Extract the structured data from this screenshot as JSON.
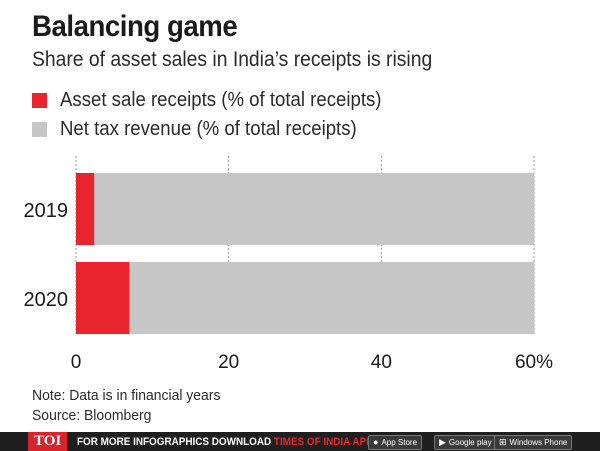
{
  "header": {
    "title": "Balancing game",
    "subtitle": "Share of asset sales in India’s receipts is rising"
  },
  "legend": [
    {
      "label": "Asset sale receipts (% of total receipts)",
      "color": "#e8242c"
    },
    {
      "label": "Net tax revenue (% of total receipts)",
      "color": "#c6c6c6"
    }
  ],
  "chart_data": {
    "type": "bar",
    "orientation": "horizontal",
    "stacked": true,
    "categories": [
      "2019",
      "2020"
    ],
    "series": [
      {
        "name": "Asset sale receipts (% of total receipts)",
        "values": [
          2.4,
          7.0
        ],
        "color": "#e8242c"
      },
      {
        "name": "Net tax revenue (% of total receipts)",
        "values": [
          57.6,
          53.0
        ],
        "color": "#c6c6c6"
      }
    ],
    "xlim": [
      0,
      60
    ],
    "xticks": [
      0,
      20,
      40,
      60
    ],
    "xtick_labels": [
      "0",
      "20",
      "40",
      "60%"
    ],
    "grid": true
  },
  "notes": {
    "note": "Note: Data is in financial years",
    "source": "Source: Bloomberg"
  },
  "footer": {
    "logo": "TOI",
    "cta_prefix": "FOR MORE  INFOGRAPHICS DOWNLOAD ",
    "cta_app": "TIMES OF INDIA APP",
    "badges": [
      {
        "icon": "apple-icon",
        "glyph": "",
        "label": "App Store"
      },
      {
        "icon": "play-icon",
        "glyph": "▶",
        "label": "Google play"
      },
      {
        "icon": "windows-icon",
        "glyph": "⊞",
        "label": "Windows Phone"
      }
    ]
  }
}
